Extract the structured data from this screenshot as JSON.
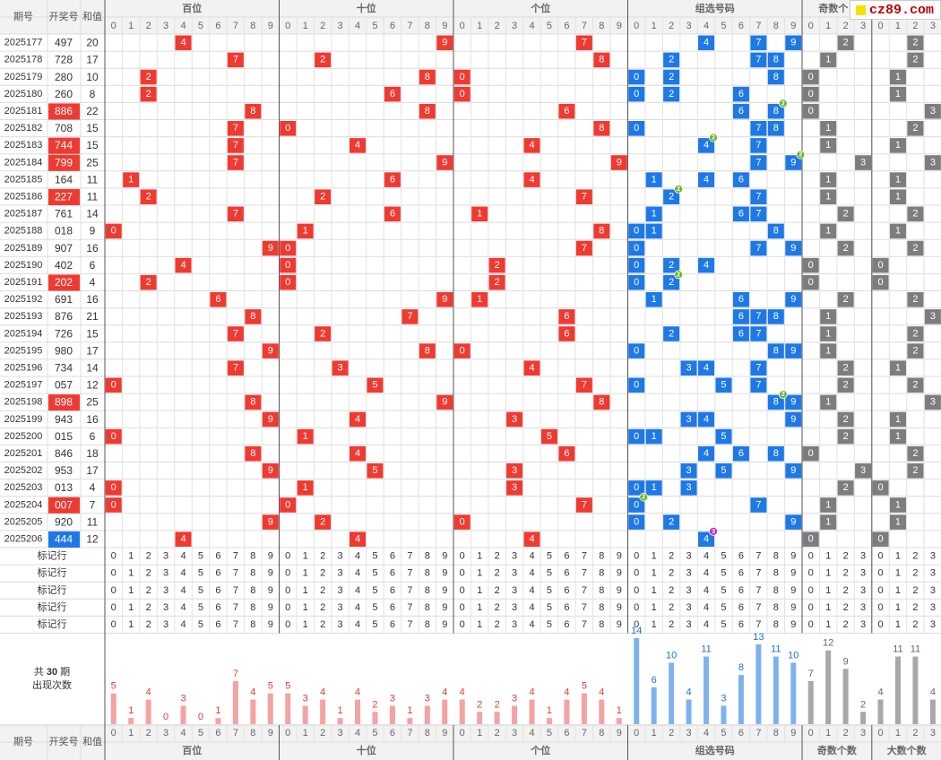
{
  "site": {
    "logo_text": "cz89.com"
  },
  "header": {
    "period_label": "期号",
    "draw_label": "开奖号",
    "sum_label": "和值",
    "group_labels": [
      "百位",
      "十位",
      "个位",
      "组选号码",
      "奇数个数",
      "大数个数"
    ],
    "top_group_labels": [
      "百位",
      "十位",
      "个位",
      "组选号码",
      "奇数个"
    ],
    "digit_labels": [
      "0",
      "1",
      "2",
      "3",
      "4",
      "5",
      "6",
      "7",
      "8",
      "9"
    ],
    "count_labels": [
      "0",
      "1",
      "2",
      "3"
    ]
  },
  "marker_label": "标记行",
  "marker_row_count": 5,
  "summary": {
    "line1_prefix": "共",
    "line1_value": "30",
    "line1_suffix": "期",
    "line2": "出现次数"
  },
  "colors": {
    "pos": "#ef3a32",
    "group": "#1e78e6",
    "stat": "#7d7d7d",
    "pos_bar": "#f4a3a3",
    "group_bar": "#7eb2ef",
    "stat_bar": "#a8a8a8",
    "pos_count_text": "#e23b2e",
    "group_count_text": "#1e6fd9",
    "stat_count_text": "#666666",
    "badge_green": "#69b52b",
    "badge_magenta": "#cc22cc"
  },
  "chart_data": {
    "type": "table",
    "draws": [
      {
        "period": "2025177",
        "number": "497",
        "sum": "20",
        "hl": "",
        "badge": {}
      },
      {
        "period": "2025178",
        "number": "728",
        "sum": "17",
        "hl": "",
        "badge": {}
      },
      {
        "period": "2025179",
        "number": "280",
        "sum": "10",
        "hl": "",
        "badge": {}
      },
      {
        "period": "2025180",
        "number": "260",
        "sum": "8",
        "hl": "",
        "badge": {}
      },
      {
        "period": "2025181",
        "number": "886",
        "sum": "22",
        "hl": "red",
        "badge": {
          "digit": "8",
          "text": "2"
        }
      },
      {
        "period": "2025182",
        "number": "708",
        "sum": "15",
        "hl": "",
        "badge": {}
      },
      {
        "period": "2025183",
        "number": "744",
        "sum": "15",
        "hl": "red",
        "badge": {
          "digit": "4",
          "text": "2"
        }
      },
      {
        "period": "2025184",
        "number": "799",
        "sum": "25",
        "hl": "red",
        "badge": {
          "digit": "9",
          "text": "2"
        }
      },
      {
        "period": "2025185",
        "number": "164",
        "sum": "11",
        "hl": "",
        "badge": {}
      },
      {
        "period": "2025186",
        "number": "227",
        "sum": "11",
        "hl": "red",
        "badge": {
          "digit": "2",
          "text": "2"
        }
      },
      {
        "period": "2025187",
        "number": "761",
        "sum": "14",
        "hl": "",
        "badge": {}
      },
      {
        "period": "2025188",
        "number": "018",
        "sum": "9",
        "hl": "",
        "badge": {}
      },
      {
        "period": "2025189",
        "number": "907",
        "sum": "16",
        "hl": "",
        "badge": {}
      },
      {
        "period": "2025190",
        "number": "402",
        "sum": "6",
        "hl": "",
        "badge": {}
      },
      {
        "period": "2025191",
        "number": "202",
        "sum": "4",
        "hl": "red",
        "badge": {
          "digit": "2",
          "text": "2"
        }
      },
      {
        "period": "2025192",
        "number": "691",
        "sum": "16",
        "hl": "",
        "badge": {}
      },
      {
        "period": "2025193",
        "number": "876",
        "sum": "21",
        "hl": "",
        "badge": {}
      },
      {
        "period": "2025194",
        "number": "726",
        "sum": "15",
        "hl": "",
        "badge": {}
      },
      {
        "period": "2025195",
        "number": "980",
        "sum": "17",
        "hl": "",
        "badge": {}
      },
      {
        "period": "2025196",
        "number": "734",
        "sum": "14",
        "hl": "",
        "badge": {}
      },
      {
        "period": "2025197",
        "number": "057",
        "sum": "12",
        "hl": "",
        "badge": {}
      },
      {
        "period": "2025198",
        "number": "898",
        "sum": "25",
        "hl": "red",
        "badge": {
          "digit": "8",
          "text": "2"
        }
      },
      {
        "period": "2025199",
        "number": "943",
        "sum": "16",
        "hl": "",
        "badge": {}
      },
      {
        "period": "2025200",
        "number": "015",
        "sum": "6",
        "hl": "",
        "badge": {}
      },
      {
        "period": "2025201",
        "number": "846",
        "sum": "18",
        "hl": "",
        "badge": {}
      },
      {
        "period": "2025202",
        "number": "953",
        "sum": "17",
        "hl": "",
        "badge": {}
      },
      {
        "period": "2025203",
        "number": "013",
        "sum": "4",
        "hl": "",
        "badge": {}
      },
      {
        "period": "2025204",
        "number": "007",
        "sum": "7",
        "hl": "red",
        "badge": {
          "digit": "0",
          "text": "2"
        }
      },
      {
        "period": "2025205",
        "number": "920",
        "sum": "11",
        "hl": "",
        "badge": {}
      },
      {
        "period": "2025206",
        "number": "444",
        "sum": "12",
        "hl": "blue",
        "badge": {
          "digit": "4",
          "text": "3"
        }
      }
    ],
    "frequency": {
      "hundreds": [
        5,
        1,
        4,
        0,
        3,
        0,
        1,
        7,
        4,
        5
      ],
      "tens": [
        5,
        3,
        4,
        1,
        4,
        2,
        3,
        1,
        3,
        4
      ],
      "units": [
        4,
        2,
        2,
        3,
        4,
        1,
        4,
        5,
        4,
        1
      ],
      "group": [
        14,
        6,
        10,
        4,
        11,
        3,
        8,
        13,
        11,
        10
      ],
      "odd_count": [
        7,
        12,
        9,
        2
      ],
      "big_count": [
        4,
        11,
        11,
        4
      ]
    }
  }
}
